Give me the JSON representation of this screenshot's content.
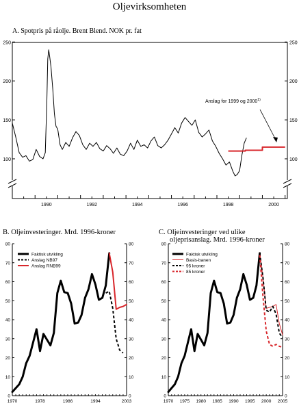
{
  "page_title": "Oljevirksomheten",
  "colors": {
    "actual": "#000000",
    "forecast_red": "#d8262b",
    "axis": "#000000"
  },
  "chart_data": [
    {
      "id": "A",
      "type": "line",
      "title": "A.  Spotpris på råolje.  Brent Blend. NOK pr. fat",
      "x_tick_labels": [
        "1990",
        "1992",
        "1994",
        "1996",
        "1998",
        "2000"
      ],
      "y_ticks": [
        100,
        150,
        200,
        250
      ],
      "ylim": [
        50,
        250
      ],
      "y_axis_break": true,
      "annotation": "Anslag for 1999 og 2000",
      "annotation_superscript": "1)",
      "series": [
        {
          "color": "#000000",
          "x": [
            1989.0,
            1989.15,
            1989.3,
            1989.45,
            1989.6,
            1989.75,
            1989.9,
            1990.05,
            1990.2,
            1990.35,
            1990.45,
            1990.52,
            1990.56,
            1990.6,
            1990.64,
            1990.7,
            1990.78,
            1990.85,
            1990.92,
            1991.0,
            1991.1,
            1991.2,
            1991.35,
            1991.5,
            1991.65,
            1991.8,
            1991.95,
            1992.1,
            1992.25,
            1992.4,
            1992.55,
            1992.7,
            1992.85,
            1993.0,
            1993.15,
            1993.3,
            1993.45,
            1993.6,
            1993.75,
            1993.9,
            1994.05,
            1994.2,
            1994.35,
            1994.5,
            1994.65,
            1994.8,
            1994.95,
            1995.1,
            1995.25,
            1995.4,
            1995.55,
            1995.7,
            1995.85,
            1996.0,
            1996.15,
            1996.3,
            1996.45,
            1996.6,
            1996.75,
            1996.9,
            1997.05,
            1997.2,
            1997.35,
            1997.5,
            1997.65,
            1997.8,
            1997.95,
            1998.1,
            1998.25,
            1998.4,
            1998.55,
            1998.7,
            1998.8,
            1998.9,
            1999.0,
            1999.1,
            1999.2,
            1999.3
          ],
          "values": [
            146,
            128,
            108,
            102,
            104,
            97,
            99,
            112,
            103,
            100,
            108,
            175,
            228,
            240,
            232,
            218,
            190,
            158,
            142,
            138,
            118,
            112,
            121,
            116,
            127,
            135,
            130,
            118,
            112,
            120,
            116,
            121,
            113,
            110,
            117,
            113,
            107,
            114,
            106,
            104,
            110,
            120,
            112,
            124,
            116,
            118,
            114,
            123,
            128,
            117,
            114,
            118,
            124,
            132,
            140,
            133,
            146,
            153,
            148,
            143,
            150,
            134,
            128,
            132,
            137,
            123,
            116,
            107,
            100,
            92,
            96,
            84,
            78,
            80,
            85,
            105,
            120,
            127
          ]
        },
        {
          "color": "#d8262b",
          "x": [
            1998.5,
            1999.25,
            1999.25,
            2000.0,
            2000.0,
            2001.0
          ],
          "values": [
            110,
            110,
            111,
            111,
            115,
            115
          ]
        }
      ]
    },
    {
      "id": "B",
      "type": "line",
      "title": "B.  Oljeinvesteringer. Mrd. 1996-kroner",
      "x_tick_labels": [
        "1970",
        "1978",
        "1986",
        "1994",
        "2003"
      ],
      "y_ticks": [
        0,
        10,
        20,
        30,
        40,
        50,
        60,
        70,
        80
      ],
      "ylim": [
        0,
        80
      ],
      "xlim": [
        1970,
        2003
      ],
      "series": [
        {
          "name": "Faktisk utvikling",
          "style": "solid",
          "color": "#000000",
          "x": [
            1970,
            1971,
            1972,
            1973,
            1974,
            1975,
            1976,
            1977,
            1978,
            1979,
            1980,
            1981,
            1982,
            1983,
            1984,
            1985,
            1986,
            1987,
            1988,
            1989,
            1990,
            1991,
            1992,
            1993,
            1994,
            1995,
            1996,
            1997,
            1998
          ],
          "values": [
            2,
            4,
            6,
            10,
            17,
            21,
            28,
            35,
            23.5,
            32.5,
            29.5,
            26.5,
            33,
            54,
            60.5,
            54.5,
            54,
            48.5,
            38,
            38.5,
            42.5,
            51.5,
            56,
            64,
            58.5,
            50.5,
            51.5,
            58,
            75
          ]
        },
        {
          "name": "Anslag NB97",
          "style": "dashed",
          "color": "#000000",
          "x": [
            1997,
            1998,
            1999,
            2000,
            2001,
            2002
          ],
          "values": [
            54,
            55,
            46,
            30,
            24,
            22.5
          ]
        },
        {
          "name": "Anslag RNB99",
          "style": "solid",
          "color": "#d8262b",
          "x": [
            1998,
            1999,
            2000,
            2001,
            2002,
            2003
          ],
          "values": [
            75,
            65,
            45.5,
            46.5,
            47,
            48
          ]
        }
      ]
    },
    {
      "id": "C",
      "type": "line",
      "title_line1": "C.  Oljeinvesteringer ved ulike",
      "title_line2": "oljeprisanslag.  Mrd. 1996-kroner",
      "x_tick_labels": [
        "1970",
        "1975",
        "1980",
        "1985",
        "1990",
        "1995",
        "2000",
        "2005"
      ],
      "y_ticks": [
        0,
        10,
        20,
        30,
        40,
        50,
        60,
        70,
        80
      ],
      "ylim": [
        0,
        80
      ],
      "xlim": [
        1970,
        2005
      ],
      "series": [
        {
          "name": "Faktisk utvikling",
          "style": "solid",
          "color": "#000000",
          "x": [
            1970,
            1971,
            1972,
            1973,
            1974,
            1975,
            1976,
            1977,
            1978,
            1979,
            1980,
            1981,
            1982,
            1983,
            1984,
            1985,
            1986,
            1987,
            1988,
            1989,
            1990,
            1991,
            1992,
            1993,
            1994,
            1995,
            1996,
            1997,
            1998
          ],
          "values": [
            2,
            4,
            6,
            10,
            17,
            21,
            28,
            35,
            23.5,
            32.5,
            29.5,
            26.5,
            33,
            54,
            60.5,
            54.5,
            54,
            48.5,
            38,
            38.5,
            42.5,
            51.5,
            56,
            64,
            58.5,
            50.5,
            51.5,
            58,
            75
          ]
        },
        {
          "name": "Basis-banen",
          "style": "thin",
          "color": "#d8262b",
          "x": [
            1998,
            1999,
            2000,
            2001,
            2002,
            2003,
            2004,
            2005
          ],
          "values": [
            75,
            62,
            46,
            46.5,
            47,
            48,
            38,
            32
          ]
        },
        {
          "name": "95 kroner",
          "style": "dashed",
          "color": "#000000",
          "x": [
            1998,
            1999,
            2000,
            2001,
            2002,
            2003,
            2004,
            2005
          ],
          "values": [
            75,
            62,
            45,
            44,
            47,
            43,
            33,
            30.5
          ]
        },
        {
          "name": "85 kroner",
          "style": "dashed",
          "color": "#d8262b",
          "x": [
            1998,
            1999,
            2000,
            2001,
            2002,
            2003,
            2004,
            2005
          ],
          "values": [
            74,
            52,
            34,
            27,
            26,
            27,
            26,
            25.5
          ]
        }
      ]
    }
  ]
}
